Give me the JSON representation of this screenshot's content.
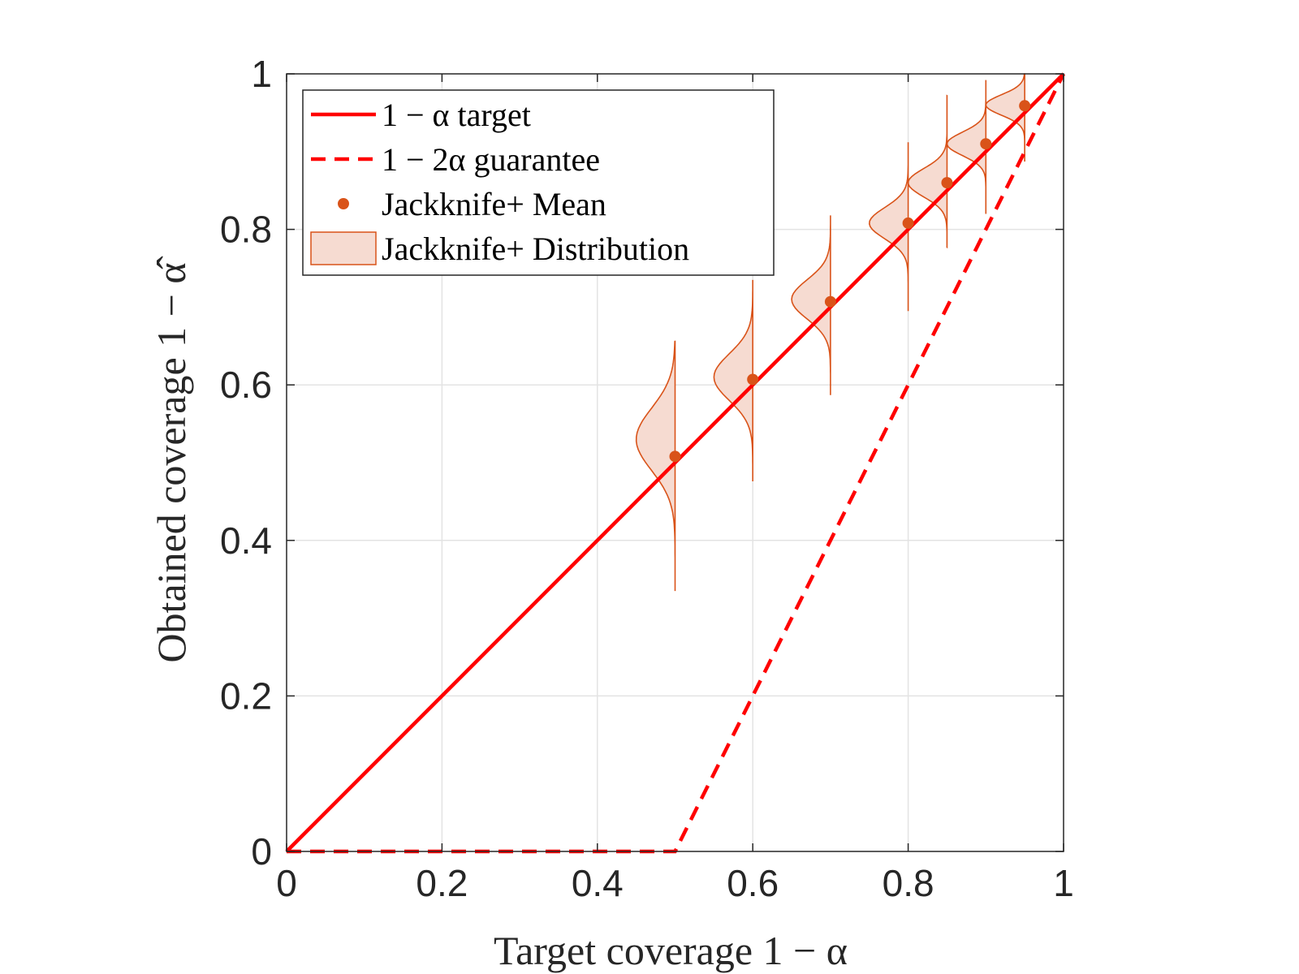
{
  "chart_data": {
    "type": "line",
    "xlabel": "Target coverage 1 − α",
    "ylabel": "Obtained coverage 1 − α̂",
    "xlim": [
      0,
      1
    ],
    "ylim": [
      0,
      1
    ],
    "xticks": [
      "0",
      "0.2",
      "0.4",
      "0.6",
      "0.8",
      "1"
    ],
    "yticks": [
      "0",
      "0.2",
      "0.4",
      "0.6",
      "0.8",
      "1"
    ],
    "grid": true,
    "legend_position": "top-left",
    "series": [
      {
        "name": "1 − α target",
        "kind": "line",
        "style": "solid",
        "color": "#ff0000",
        "x": [
          0,
          1
        ],
        "y": [
          0,
          1
        ]
      },
      {
        "name": "1 − 2α guarantee",
        "kind": "line",
        "style": "dashed",
        "color": "#ff0000",
        "x": [
          0,
          0.5,
          1
        ],
        "y": [
          0,
          0,
          1
        ]
      },
      {
        "name": "Jackknife+ Mean",
        "kind": "scatter",
        "color": "#d95319",
        "x": [
          0.5,
          0.6,
          0.7,
          0.8,
          0.85,
          0.9,
          0.95
        ],
        "y": [
          0.508,
          0.607,
          0.707,
          0.808,
          0.86,
          0.91,
          0.959
        ]
      },
      {
        "name": "Jackknife+ Distribution",
        "kind": "violin-half",
        "color": "#d95319",
        "fill": "#f6dbd1",
        "violins": [
          {
            "x": 0.5,
            "y_min": 0.335,
            "y_max": 0.656,
            "peak": 0.53,
            "half_width": 0.05,
            "spread": 0.04
          },
          {
            "x": 0.6,
            "y_min": 0.476,
            "y_max": 0.735,
            "peak": 0.61,
            "half_width": 0.05,
            "spread": 0.03
          },
          {
            "x": 0.7,
            "y_min": 0.587,
            "y_max": 0.818,
            "peak": 0.71,
            "half_width": 0.05,
            "spread": 0.025
          },
          {
            "x": 0.8,
            "y_min": 0.695,
            "y_max": 0.912,
            "peak": 0.808,
            "half_width": 0.05,
            "spread": 0.02
          },
          {
            "x": 0.85,
            "y_min": 0.777,
            "y_max": 0.972,
            "peak": 0.86,
            "half_width": 0.05,
            "spread": 0.018
          },
          {
            "x": 0.9,
            "y_min": 0.82,
            "y_max": 0.992,
            "peak": 0.91,
            "half_width": 0.05,
            "spread": 0.015
          },
          {
            "x": 0.95,
            "y_min": 0.888,
            "y_max": 1.0,
            "peak": 0.96,
            "half_width": 0.05,
            "spread": 0.013
          }
        ]
      }
    ]
  }
}
